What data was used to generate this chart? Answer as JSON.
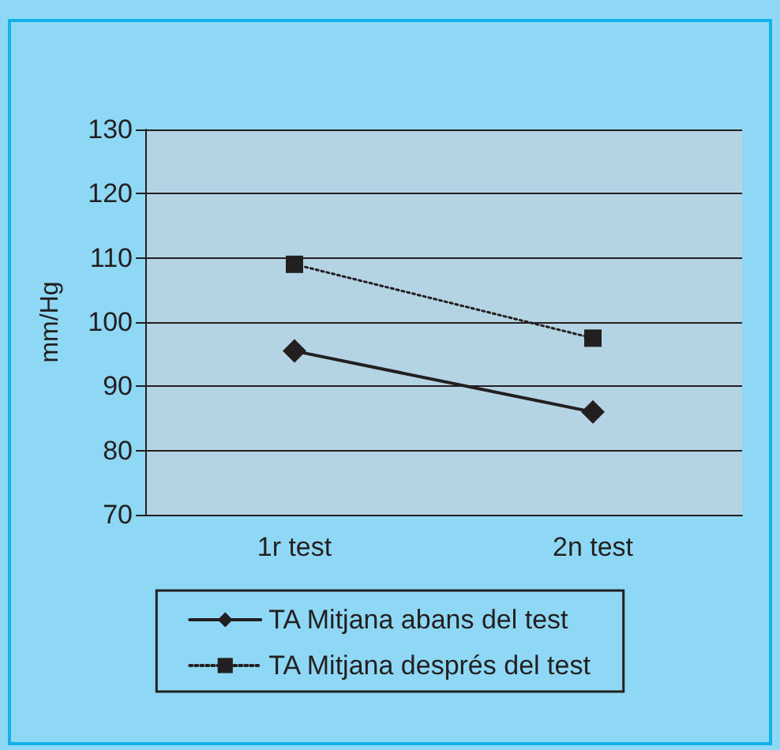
{
  "chart_data": {
    "type": "line",
    "ylabel": "mm/Hg",
    "categories": [
      "1r test",
      "2n test"
    ],
    "series": [
      {
        "name": "TA Mitjana abans del test",
        "color": "#231f20",
        "values": [
          95.5,
          86
        ],
        "marker": "diamond",
        "line_style": "solid"
      },
      {
        "name": "TA Mitjana després del test",
        "color": "#231f20",
        "values": [
          109,
          97.5
        ],
        "marker": "square",
        "line_style": "dotted"
      }
    ],
    "ylim": [
      70,
      130
    ],
    "yticks": [
      70,
      80,
      90,
      100,
      110,
      120,
      130
    ],
    "grid": "y",
    "legend": "bottom"
  }
}
